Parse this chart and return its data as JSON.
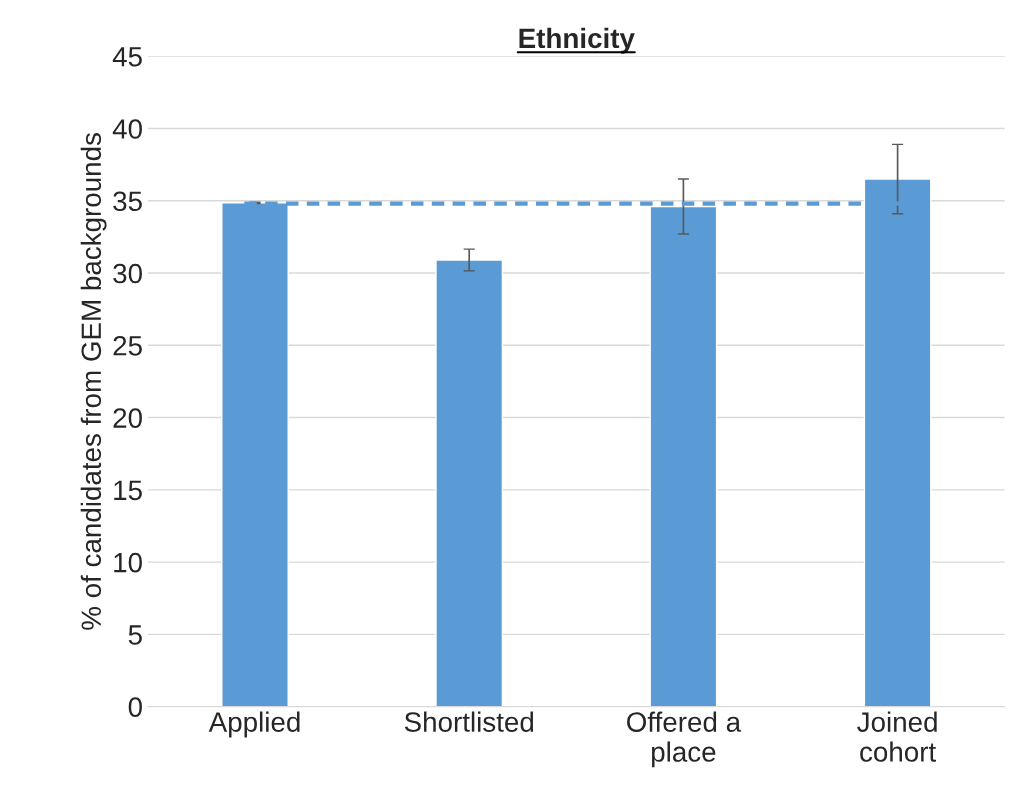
{
  "chart_data": {
    "type": "bar",
    "title": "Ethnicity",
    "ylabel": "% of candidates from GEM backgrounds",
    "categories": [
      "Applied",
      "Shortlisted",
      "Offered a\nplace",
      "Joined\ncohort"
    ],
    "values": [
      34.85,
      30.9,
      34.6,
      36.5
    ],
    "errors": [
      0.05,
      0.75,
      1.9,
      2.4
    ],
    "color": "#5b9bd5",
    "ylim": [
      0,
      45
    ],
    "yticks": [
      0,
      5,
      10,
      15,
      20,
      25,
      30,
      35,
      40,
      45
    ],
    "grid": "y",
    "ref_lines": [
      {
        "axis": "y",
        "value": 34.8,
        "color": "#5b9bd5",
        "line_style": "dashed"
      }
    ]
  }
}
